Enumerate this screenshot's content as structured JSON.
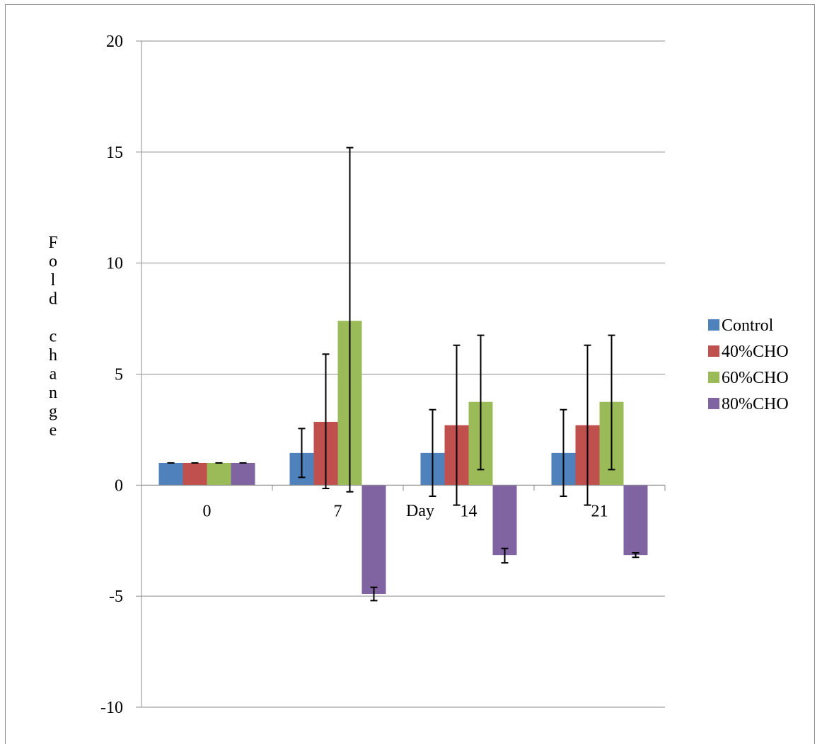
{
  "chart_data": {
    "type": "bar",
    "title": "",
    "xlabel": "Day",
    "ylabel": "Fold change",
    "ylim": [
      -10,
      20
    ],
    "yticks": [
      -10,
      -5,
      0,
      5,
      10,
      15,
      20
    ],
    "ytick_labels": [
      "-10",
      "-5",
      "0",
      "5",
      "10",
      "15",
      "20"
    ],
    "categories": [
      "0",
      "7",
      "14",
      "21"
    ],
    "grid": true,
    "legend_position": "right",
    "series": [
      {
        "name": "Control",
        "color": "#4f81bd",
        "values": [
          1.0,
          1.45,
          1.45,
          1.45
        ],
        "err_low": [
          1.0,
          0.35,
          -0.5,
          -0.5
        ],
        "err_high": [
          1.0,
          2.55,
          3.4,
          3.4
        ]
      },
      {
        "name": "40%CHO",
        "color": "#c0504d",
        "values": [
          1.0,
          2.85,
          2.7,
          2.7
        ],
        "err_low": [
          1.0,
          -0.15,
          -0.9,
          -0.9
        ],
        "err_high": [
          1.0,
          5.9,
          6.3,
          6.3
        ]
      },
      {
        "name": "60%CHO",
        "color": "#9bbb59",
        "values": [
          1.0,
          7.4,
          3.75,
          3.75
        ],
        "err_low": [
          1.0,
          -0.3,
          0.7,
          0.7
        ],
        "err_high": [
          1.0,
          15.2,
          6.75,
          6.75
        ]
      },
      {
        "name": "80%CHO",
        "color": "#8064a2",
        "values": [
          1.0,
          -4.9,
          -3.15,
          -3.15
        ],
        "err_low": [
          1.0,
          -5.2,
          -3.5,
          -3.25
        ],
        "err_high": [
          1.0,
          -4.6,
          -2.85,
          -3.05
        ]
      }
    ]
  }
}
